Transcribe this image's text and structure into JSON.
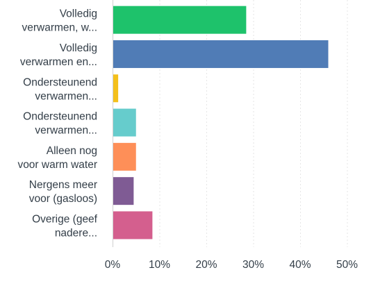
{
  "chart_data": {
    "type": "bar",
    "orientation": "horizontal",
    "categories": [
      [
        "Volledig",
        "verwarmen, w..."
      ],
      [
        "Volledig",
        "verwarmen en..."
      ],
      [
        "Ondersteunend",
        "verwarmen..."
      ],
      [
        "Ondersteunend",
        "verwarmen..."
      ],
      [
        "Alleen nog",
        "voor warm water"
      ],
      [
        "Nergens meer",
        "voor (gasloos)"
      ],
      [
        "Overige (geef",
        "nadere..."
      ]
    ],
    "values": [
      28.5,
      46,
      1.2,
      5,
      5,
      4.5,
      8.5
    ],
    "colors": [
      "#1ec26b",
      "#507cb6",
      "#f4c01b",
      "#66cccc",
      "#fe8f58",
      "#7f5b94",
      "#d45f8e"
    ],
    "xlim": [
      0,
      55
    ],
    "xticks": [
      0,
      10,
      20,
      30,
      40,
      50
    ],
    "xtick_labels": [
      "0%",
      "10%",
      "20%",
      "30%",
      "40%",
      "50%"
    ],
    "grid": true
  }
}
